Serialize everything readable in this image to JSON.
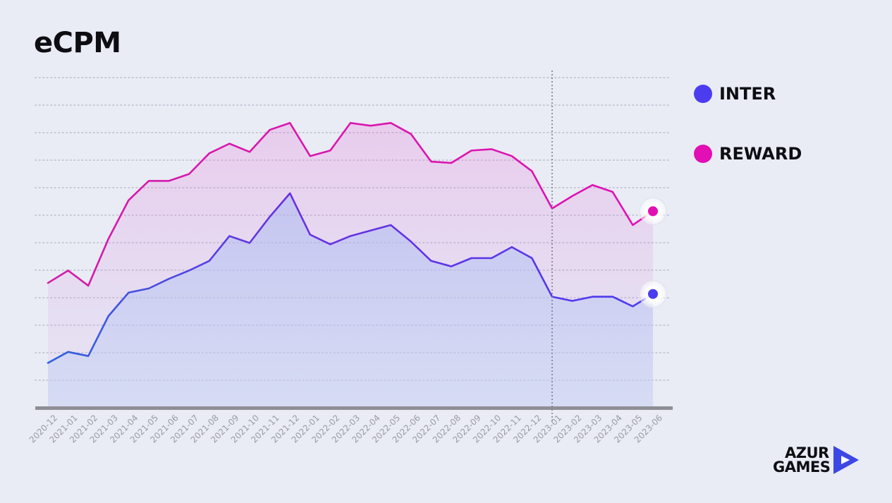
{
  "title": "eCPM",
  "colors": {
    "inter": "#4b3cf0",
    "inter_start": "#2f63df",
    "reward": "#e10fb4",
    "reward_start": "#d21ca8",
    "grid": "#b9bccb",
    "baseline": "#8e8e95",
    "vline": "#7a7c8c",
    "logo_blue": "#3d47e6"
  },
  "legend": [
    {
      "label": "INTER",
      "color": "#4b3cf0"
    },
    {
      "label": "REWARD",
      "color": "#e10fb4"
    }
  ],
  "logo": {
    "line1": "AZUR",
    "line2": "GAMES",
    "icon": "play-triangle-icon"
  },
  "chart_data": {
    "type": "area",
    "title": "eCPM",
    "xlabel": "",
    "ylabel": "",
    "ylim": [
      0,
      12.2
    ],
    "grid": true,
    "legend_position": "right",
    "marker_index": 25,
    "categories": [
      "2020-12",
      "2021-01",
      "2021-02",
      "2021-03",
      "2021-04",
      "2021-05",
      "2021-06",
      "2021-07",
      "2021-08",
      "2021-09",
      "2021-10",
      "2021-11",
      "2021-12",
      "2022-01",
      "2022-02",
      "2022-03",
      "2022-04",
      "2022-05",
      "2022-06",
      "2022-07",
      "2022-08",
      "2022-09",
      "2022-10",
      "2022-11",
      "2022-12",
      "2023-01",
      "2023-02",
      "2023-03",
      "2023-04",
      "2023-05",
      "2023-06"
    ],
    "series": [
      {
        "name": "INTER",
        "values": [
          1.6,
          2.0,
          1.85,
          3.3,
          4.15,
          4.3,
          4.65,
          4.95,
          5.3,
          6.2,
          5.95,
          6.9,
          7.75,
          6.25,
          5.9,
          6.2,
          6.4,
          6.6,
          6.0,
          5.3,
          5.1,
          5.4,
          5.4,
          5.8,
          5.4,
          4.0,
          3.85,
          4.0,
          4.0,
          3.65,
          4.1
        ]
      },
      {
        "name": "REWARD",
        "values": [
          4.5,
          4.95,
          4.4,
          6.1,
          7.5,
          8.2,
          8.2,
          8.45,
          9.2,
          9.55,
          9.25,
          10.05,
          10.3,
          9.1,
          9.3,
          10.3,
          10.2,
          10.3,
          9.9,
          8.9,
          8.85,
          9.3,
          9.35,
          9.1,
          8.55,
          7.2,
          7.65,
          8.05,
          7.8,
          6.6,
          7.1
        ]
      }
    ]
  }
}
